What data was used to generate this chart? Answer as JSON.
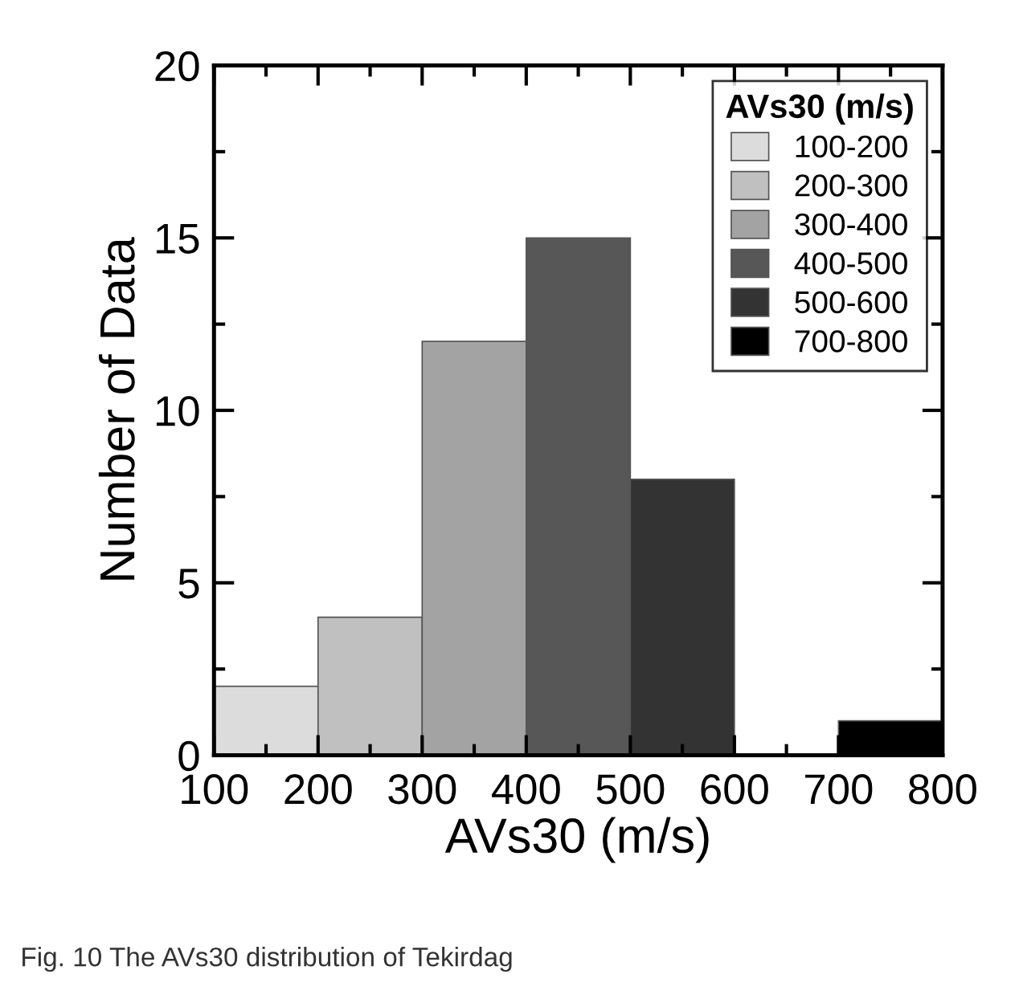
{
  "chart_data": {
    "type": "histogram",
    "xlabel": "AVs30 (m/s)",
    "ylabel": "Number of Data",
    "legend_title": "AVs30 (m/s)",
    "bins": [
      100,
      200,
      300,
      400,
      500,
      600,
      700,
      800
    ],
    "series": [
      {
        "name": "100-200",
        "color": "#dcdcdc",
        "values": [
          2,
          null,
          null,
          null,
          null,
          null,
          null
        ]
      },
      {
        "name": "200-300",
        "color": "#c0c0c0",
        "values": [
          null,
          4,
          null,
          null,
          null,
          null,
          null
        ]
      },
      {
        "name": "300-400",
        "color": "#a3a3a3",
        "values": [
          null,
          null,
          12,
          null,
          null,
          null,
          null
        ]
      },
      {
        "name": "400-500",
        "color": "#575757",
        "values": [
          null,
          null,
          null,
          15,
          null,
          null,
          null
        ]
      },
      {
        "name": "500-600",
        "color": "#333333",
        "values": [
          null,
          null,
          null,
          null,
          8,
          null,
          null
        ]
      },
      {
        "name": "700-800",
        "color": "#000000",
        "values": [
          null,
          null,
          null,
          null,
          null,
          null,
          1
        ]
      }
    ],
    "xlim": [
      100,
      800
    ],
    "xticks": [
      100,
      200,
      300,
      400,
      500,
      600,
      700,
      800
    ],
    "ylim": [
      0,
      20
    ],
    "yticks": [
      0,
      5,
      10,
      15,
      20
    ],
    "grid": false,
    "legend": "top right",
    "annotations": [
      "Fig. 10 The AVs30 distribution of Tekirdag"
    ]
  }
}
